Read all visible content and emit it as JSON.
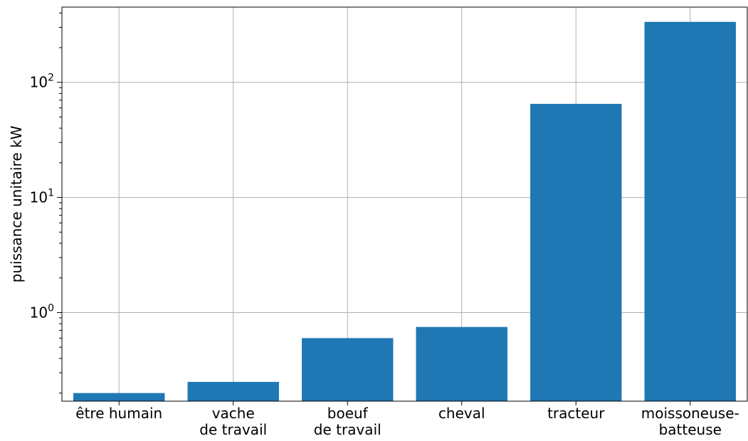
{
  "chart_data": {
    "type": "bar",
    "title": "",
    "xlabel": "",
    "ylabel": "puissance unitaire kW",
    "yscale": "log",
    "ylim": [
      0.17,
      450
    ],
    "grid": true,
    "bar_color": "#1f77b4",
    "categories": [
      [
        "être humain"
      ],
      [
        "vache",
        "de travail"
      ],
      [
        "boeuf",
        "de travail"
      ],
      [
        "cheval"
      ],
      [
        "tracteur"
      ],
      [
        "moissoneuse-",
        "batteuse"
      ]
    ],
    "values": [
      0.2,
      0.25,
      0.6,
      0.75,
      65,
      335
    ],
    "y_ticks": [
      {
        "value": 1,
        "base": "10",
        "exp": "0"
      },
      {
        "value": 10,
        "base": "10",
        "exp": "1"
      },
      {
        "value": 100,
        "base": "10",
        "exp": "2"
      }
    ]
  }
}
